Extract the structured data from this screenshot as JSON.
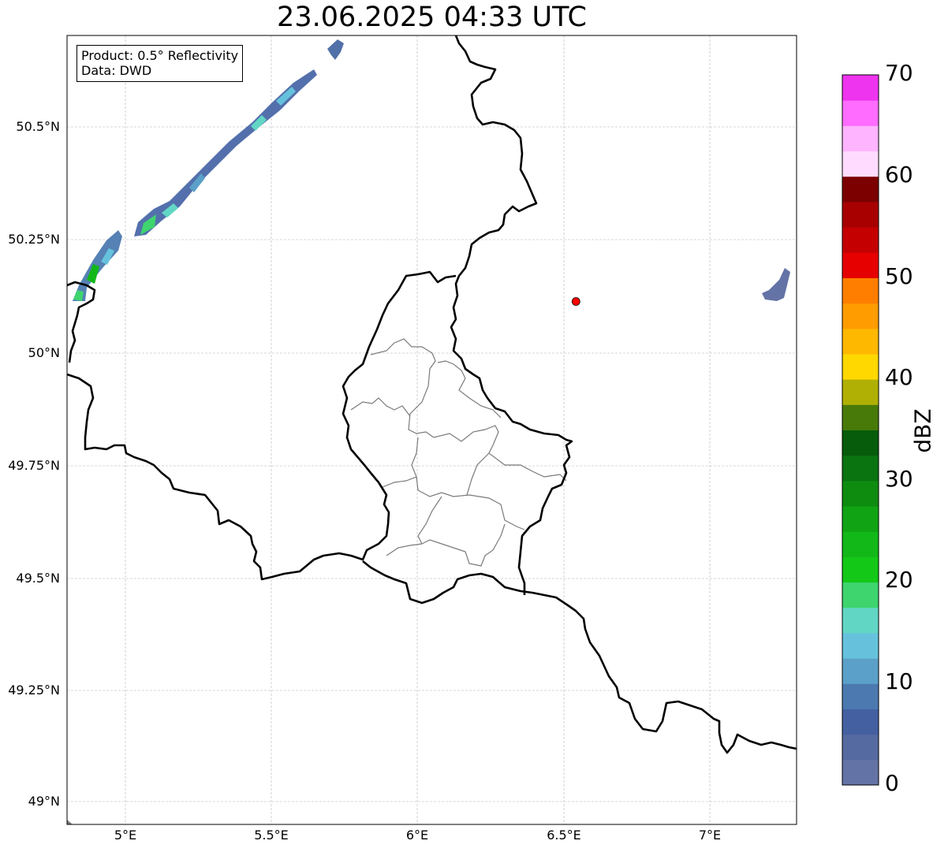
{
  "title": "23.06.2025 04:33 UTC",
  "info": {
    "product": "Product: 0.5° Reflectivity",
    "data": "Data: DWD"
  },
  "map": {
    "extent": {
      "lon_min": 4.81,
      "lon_max": 7.3,
      "lat_min": 48.95,
      "lat_max": 50.7
    },
    "y_ticks": [
      "50.5°N",
      "50.25°N",
      "50°N",
      "49.75°N",
      "49.5°N",
      "49.25°N",
      "49°N"
    ],
    "x_ticks": [
      "5°E",
      "5.5°E",
      "6°E",
      "6.5°E",
      "7°E"
    ],
    "grid": true,
    "marker": {
      "lon": 6.547,
      "lat": 50.11,
      "color": "#ff0000"
    }
  },
  "colorbar": {
    "label": "dBZ",
    "ticks": [
      "0",
      "10",
      "20",
      "30",
      "40",
      "50",
      "60",
      "70"
    ],
    "colors": [
      "#6473a5",
      "#556aa0",
      "#4460a0",
      "#4c7ab0",
      "#5ba0c8",
      "#66c2dc",
      "#62d6c4",
      "#3ed46e",
      "#14c818",
      "#12b818",
      "#10a414",
      "#0e8c10",
      "#0a7410",
      "#065c0a",
      "#487a0a",
      "#b0b004",
      "#ffd800",
      "#ffb800",
      "#ff9c00",
      "#ff7e00",
      "#e60000",
      "#c40000",
      "#a80000",
      "#7c0000",
      "#ffdcff",
      "#ffb4ff",
      "#ff6cff",
      "#ee34ee"
    ]
  }
}
